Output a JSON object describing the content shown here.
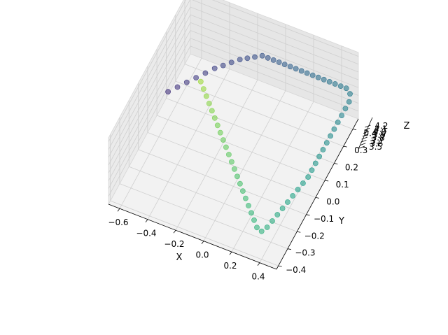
{
  "chart_data": {
    "type": "scatter",
    "projection": "3d",
    "title": "",
    "xlabel": "X",
    "ylabel": "Y",
    "zlabel": "Z",
    "xlim": [
      -0.68,
      0.52
    ],
    "ylim": [
      -0.42,
      0.46
    ],
    "zlim": [
      3.4,
      4.25
    ],
    "xticks": [
      "−0.6",
      "−0.4",
      "−0.2",
      "0.0",
      "0.2",
      "0.4"
    ],
    "yticks": [
      "−0.4",
      "−0.3",
      "−0.2",
      "−0.1",
      "0.0",
      "0.1",
      "0.2",
      "0.3",
      "0.4"
    ],
    "zticks": [
      "3.5",
      "3.6",
      "3.7",
      "3.8",
      "3.9",
      "4.0",
      "4.1",
      "4.2"
    ],
    "grid": true,
    "colormap": "viridis",
    "marker_alpha": 0.6,
    "series": [
      {
        "points": [
          [
            -0.6,
            0.1,
            3.8
          ],
          [
            -0.56,
            0.14,
            3.8
          ],
          [
            -0.52,
            0.18,
            3.8
          ],
          [
            -0.48,
            0.22,
            3.8
          ],
          [
            -0.44,
            0.26,
            3.8
          ],
          [
            -0.4,
            0.3,
            3.8
          ],
          [
            -0.36,
            0.33,
            3.8
          ],
          [
            -0.32,
            0.36,
            3.8
          ],
          [
            -0.28,
            0.39,
            3.8
          ],
          [
            -0.24,
            0.41,
            3.8
          ],
          [
            -0.2,
            0.43,
            3.8
          ],
          [
            -0.16,
            0.45,
            3.8
          ],
          [
            -0.12,
            0.45,
            3.8
          ],
          [
            -0.08,
            0.45,
            3.8
          ],
          [
            -0.04,
            0.45,
            3.8
          ],
          [
            0.0,
            0.45,
            3.8
          ],
          [
            0.04,
            0.45,
            3.8
          ],
          [
            0.08,
            0.45,
            3.8
          ],
          [
            0.12,
            0.45,
            3.8
          ],
          [
            0.16,
            0.45,
            3.8
          ],
          [
            0.2,
            0.45,
            3.8
          ],
          [
            0.24,
            0.45,
            3.8
          ],
          [
            0.28,
            0.45,
            3.8
          ],
          [
            0.32,
            0.45,
            3.8
          ],
          [
            0.36,
            0.45,
            3.8
          ],
          [
            0.4,
            0.45,
            3.8
          ],
          [
            0.44,
            0.45,
            3.8
          ],
          [
            0.48,
            0.43,
            3.8
          ],
          [
            0.5,
            0.39,
            3.8
          ],
          [
            0.5,
            0.35,
            3.8
          ],
          [
            0.5,
            0.31,
            3.8
          ],
          [
            0.5,
            0.27,
            3.8
          ],
          [
            0.5,
            0.23,
            3.8
          ],
          [
            0.5,
            0.19,
            3.8
          ],
          [
            0.5,
            0.15,
            3.8
          ],
          [
            0.5,
            0.11,
            3.8
          ],
          [
            0.5,
            0.07,
            3.8
          ],
          [
            0.5,
            0.03,
            3.8
          ],
          [
            0.5,
            -0.01,
            3.8
          ],
          [
            0.5,
            -0.05,
            3.8
          ],
          [
            0.49,
            -0.09,
            3.8
          ],
          [
            0.48,
            -0.13,
            3.8
          ],
          [
            0.47,
            -0.17,
            3.8
          ],
          [
            0.46,
            -0.21,
            3.8
          ],
          [
            0.45,
            -0.25,
            3.8
          ],
          [
            0.44,
            -0.29,
            3.8
          ],
          [
            0.43,
            -0.33,
            3.8
          ],
          [
            0.42,
            -0.37,
            3.8
          ],
          [
            0.4,
            -0.4,
            3.8
          ],
          [
            0.36,
            -0.39,
            3.8
          ],
          [
            0.32,
            -0.36,
            3.8
          ],
          [
            0.28,
            -0.33,
            3.8
          ],
          [
            0.24,
            -0.3,
            3.8
          ],
          [
            0.2,
            -0.27,
            3.8
          ],
          [
            0.16,
            -0.24,
            3.8
          ],
          [
            0.12,
            -0.21,
            3.8
          ],
          [
            0.08,
            -0.18,
            3.8
          ],
          [
            0.04,
            -0.15,
            3.8
          ],
          [
            0.0,
            -0.12,
            3.8
          ],
          [
            -0.04,
            -0.09,
            3.8
          ],
          [
            -0.08,
            -0.06,
            3.8
          ],
          [
            -0.12,
            -0.03,
            3.8
          ],
          [
            -0.16,
            0.0,
            3.8
          ],
          [
            -0.2,
            0.03,
            3.8
          ],
          [
            -0.24,
            0.06,
            3.8
          ],
          [
            -0.28,
            0.09,
            3.8
          ],
          [
            -0.32,
            0.12,
            3.8
          ],
          [
            -0.36,
            0.15,
            3.8
          ],
          [
            -0.4,
            0.18,
            3.8
          ],
          [
            -0.44,
            0.21,
            3.8
          ]
        ]
      }
    ]
  }
}
